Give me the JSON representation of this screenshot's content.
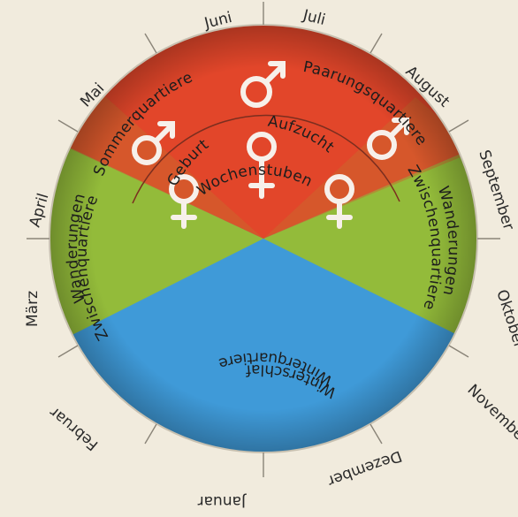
{
  "months": {
    "januar": "Januar",
    "februar": "Februar",
    "maerz": "März",
    "april": "April",
    "mai": "Mai",
    "juni": "Juni",
    "juli": "Juli",
    "august": "August",
    "september": "September",
    "oktober": "Oktober",
    "november": "November",
    "dezember": "Dezember"
  },
  "phases": {
    "sommerquartiere": "Sommerquartiere",
    "paarungsquartiere": "Paarungsquartiere",
    "geburt": "Geburt",
    "aufzucht": "Aufzucht",
    "wochenstuben": "Wochenstuben",
    "wanderungen_left": "Wanderungen",
    "zwischenquartiere_left": "Zwischenquartiere",
    "wanderungen_right": "Wanderungen",
    "zwischenquartiere_right": "Zwischenquartiere",
    "winterschlaf": "Winterschlaf",
    "winterquartiere": "Winterquartiere"
  },
  "colors": {
    "background": "#f1ebdd",
    "summer": "#e2462a",
    "transition": "#93bb3a",
    "winter": "#3f9ad8",
    "symbols": "#f7f0ea",
    "ticks": "#8a8478"
  },
  "symbols": {
    "male": "male-symbol-icon",
    "female": "female-symbol-icon"
  }
}
